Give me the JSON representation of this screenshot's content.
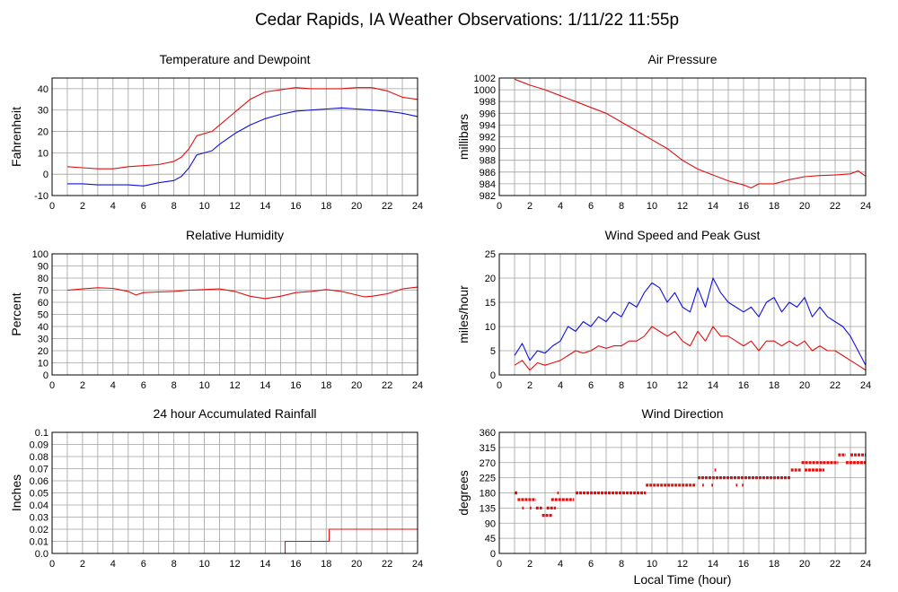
{
  "title": "Cedar Rapids, IA Weather Observations: 1/11/22 11:55p",
  "colors": {
    "red": "#e01010",
    "blue": "#1010e0",
    "grid": "#a0a0a0",
    "frame": "#000000"
  },
  "chart_data": [
    {
      "type": "line",
      "title": "Temperature and Dewpoint",
      "ylabel": "Fahrenheit",
      "xlabel": "",
      "xlim": [
        0,
        24
      ],
      "ylim": [
        -10,
        45
      ],
      "xticks": [
        0,
        2,
        4,
        6,
        8,
        10,
        12,
        14,
        16,
        18,
        20,
        22,
        24
      ],
      "yticks": [
        -10,
        0,
        10,
        20,
        30,
        40
      ],
      "grid": true,
      "series": [
        {
          "color": "#e01010",
          "x": [
            1,
            2,
            3,
            4,
            5,
            6,
            7,
            8,
            8.5,
            9,
            9.5,
            10,
            10.5,
            11,
            12,
            13,
            14,
            15,
            16,
            17,
            18,
            19,
            20,
            21,
            22,
            23,
            24
          ],
          "y": [
            3.5,
            3,
            2.5,
            2.5,
            3.5,
            4,
            4.5,
            6,
            8,
            12,
            18,
            19,
            20,
            23,
            29,
            35,
            38.5,
            39.5,
            40.5,
            40,
            40,
            40,
            40.5,
            40.5,
            39,
            36,
            35
          ]
        },
        {
          "color": "#1010e0",
          "x": [
            1,
            2,
            3,
            4,
            5,
            6,
            7,
            8,
            8.5,
            9,
            9.5,
            10,
            10.5,
            11,
            12,
            13,
            14,
            15,
            16,
            17,
            18,
            19,
            20,
            21,
            22,
            23,
            24
          ],
          "y": [
            -4.5,
            -4.5,
            -5,
            -5,
            -5,
            -5.5,
            -4,
            -3,
            -1,
            3,
            9,
            10,
            11,
            14,
            19,
            23,
            26,
            28,
            29.5,
            30,
            30.5,
            31,
            30.5,
            30,
            29.5,
            28.5,
            27
          ]
        }
      ]
    },
    {
      "type": "line",
      "title": "Air Pressure",
      "ylabel": "millibars",
      "xlabel": "",
      "xlim": [
        0,
        24
      ],
      "ylim": [
        982,
        1002
      ],
      "xticks": [
        0,
        2,
        4,
        6,
        8,
        10,
        12,
        14,
        16,
        18,
        20,
        22,
        24
      ],
      "yticks": [
        982,
        984,
        986,
        988,
        990,
        992,
        994,
        996,
        998,
        1000,
        1002
      ],
      "grid": true,
      "series": [
        {
          "color": "#e01010",
          "x": [
            1,
            2,
            3,
            4,
            5,
            6,
            7,
            8,
            9,
            10,
            11,
            12,
            13,
            14,
            15,
            16,
            16.5,
            17,
            18,
            19,
            20,
            21,
            22,
            23,
            23.5,
            24
          ],
          "y": [
            1001.8,
            1000.8,
            1000,
            999,
            998,
            997,
            996,
            994.5,
            993,
            991.5,
            990,
            988,
            986.5,
            985.5,
            984.5,
            983.8,
            983.3,
            984,
            984,
            984.7,
            985.2,
            985.4,
            985.5,
            985.7,
            986.2,
            985.3
          ]
        }
      ]
    },
    {
      "type": "line",
      "title": "Relative Humidity",
      "ylabel": "Percent",
      "xlabel": "",
      "xlim": [
        0,
        24
      ],
      "ylim": [
        0,
        100
      ],
      "xticks": [
        0,
        2,
        4,
        6,
        8,
        10,
        12,
        14,
        16,
        18,
        20,
        22,
        24
      ],
      "yticks": [
        0,
        10,
        20,
        30,
        40,
        50,
        60,
        70,
        80,
        90,
        100
      ],
      "grid": true,
      "series": [
        {
          "color": "#e01010",
          "x": [
            1,
            2,
            3,
            4,
            5,
            5.5,
            6,
            7,
            8,
            9,
            10,
            11,
            12,
            13,
            14,
            15,
            16,
            17,
            18,
            19,
            20,
            20.5,
            21,
            22,
            23,
            24
          ],
          "y": [
            70,
            71,
            72,
            71.5,
            69,
            66,
            68,
            68.5,
            69,
            70,
            70.5,
            71,
            69,
            65,
            63,
            65,
            68,
            69,
            70.5,
            69,
            66,
            64.5,
            65,
            67,
            71,
            72.5
          ]
        }
      ]
    },
    {
      "type": "line",
      "title": "Wind Speed and Peak Gust",
      "ylabel": "miles/hour",
      "xlabel": "",
      "xlim": [
        0,
        24
      ],
      "ylim": [
        0,
        25
      ],
      "xticks": [
        0,
        2,
        4,
        6,
        8,
        10,
        12,
        14,
        16,
        18,
        20,
        22,
        24
      ],
      "yticks": [
        0,
        5,
        10,
        15,
        20,
        25
      ],
      "grid": true,
      "series": [
        {
          "color": "#1010e0",
          "x": [
            1,
            1.5,
            2,
            2.5,
            3,
            3.5,
            4,
            4.5,
            5,
            5.5,
            6,
            6.5,
            7,
            7.5,
            8,
            8.5,
            9,
            9.5,
            10,
            10.5,
            11,
            11.5,
            12,
            12.5,
            13,
            13.5,
            14,
            14.5,
            15,
            15.5,
            16,
            16.5,
            17,
            17.5,
            18,
            18.5,
            19,
            19.5,
            20,
            20.5,
            21,
            21.5,
            22,
            22.5,
            23,
            23.5,
            24
          ],
          "y": [
            4,
            6.5,
            3,
            5,
            4.5,
            6,
            7,
            10,
            9,
            11,
            10,
            12,
            11,
            13,
            12,
            15,
            14,
            17,
            19,
            18,
            15,
            17,
            14,
            13,
            18,
            14,
            20,
            17,
            15,
            14,
            13,
            14,
            12,
            15,
            16,
            13,
            15,
            14,
            16,
            12,
            14,
            12,
            11,
            10,
            8,
            5,
            2
          ]
        },
        {
          "color": "#e01010",
          "x": [
            1,
            1.5,
            2,
            2.5,
            3,
            3.5,
            4,
            4.5,
            5,
            5.5,
            6,
            6.5,
            7,
            7.5,
            8,
            8.5,
            9,
            9.5,
            10,
            10.5,
            11,
            11.5,
            12,
            12.5,
            13,
            13.5,
            14,
            14.5,
            15,
            15.5,
            16,
            16.5,
            17,
            17.5,
            18,
            18.5,
            19,
            19.5,
            20,
            20.5,
            21,
            21.5,
            22,
            22.5,
            23,
            23.5,
            24
          ],
          "y": [
            2,
            3,
            1,
            2.5,
            2,
            2.5,
            3,
            4,
            5,
            4.5,
            5,
            6,
            5.5,
            6,
            6,
            7,
            7,
            8,
            10,
            9,
            8,
            9,
            7,
            6,
            9,
            7,
            10,
            8,
            8,
            7,
            6,
            7,
            5,
            7,
            7,
            6,
            7,
            6,
            7,
            5,
            6,
            5,
            5,
            4,
            3,
            2,
            1
          ]
        }
      ]
    },
    {
      "type": "line",
      "title": "24 hour Accumulated Rainfall",
      "ylabel": "Inches",
      "xlabel": "",
      "xlim": [
        0,
        24
      ],
      "ylim": [
        0,
        0.1
      ],
      "xticks": [
        0,
        2,
        4,
        6,
        8,
        10,
        12,
        14,
        16,
        18,
        20,
        22,
        24
      ],
      "yticks": [
        "0.0",
        "0.01",
        "0.02",
        "0.03",
        "0.04",
        "0.05",
        "0.06",
        "0.07",
        "0.08",
        "0.09",
        "0.1"
      ],
      "grid": true,
      "series": [
        {
          "color": "#e01010",
          "x": [
            1,
            15.3,
            15.3,
            18.2,
            18.2,
            24
          ],
          "y": [
            0,
            0,
            0.01,
            0.01,
            0.02,
            0.02
          ]
        }
      ]
    },
    {
      "type": "scatter",
      "title": "Wind Direction",
      "ylabel": "degrees",
      "xlabel": "Local Time (hour)",
      "xlim": [
        0,
        24
      ],
      "ylim": [
        0,
        360
      ],
      "xticks": [
        0,
        2,
        4,
        6,
        8,
        10,
        12,
        14,
        16,
        18,
        20,
        22,
        24
      ],
      "yticks": [
        0,
        45,
        90,
        135,
        180,
        225,
        270,
        315,
        360
      ],
      "grid": true,
      "series": [
        {
          "color": "#e01010",
          "segments": [
            [
              1.0,
              1.2,
              180
            ],
            [
              1.2,
              2.4,
              160
            ],
            [
              1.5,
              1.6,
              135
            ],
            [
              2.0,
              2.1,
              135
            ],
            [
              2.4,
              2.8,
              135
            ],
            [
              2.8,
              3.5,
              113
            ],
            [
              3.1,
              3.7,
              135
            ],
            [
              3.4,
              4.9,
              160
            ],
            [
              3.8,
              3.9,
              180
            ],
            [
              5.0,
              9.6,
              180
            ],
            [
              9.6,
              12.9,
              203
            ],
            [
              13.0,
              19.1,
              225
            ],
            [
              14.1,
              14.2,
              248
            ],
            [
              13.3,
              13.4,
              203
            ],
            [
              13.9,
              14.0,
              203
            ],
            [
              15.5,
              15.6,
              203
            ],
            [
              15.9,
              16.0,
              203
            ],
            [
              19.1,
              19.8,
              248
            ],
            [
              19.8,
              21.2,
              270
            ],
            [
              20.0,
              21.3,
              248
            ],
            [
              21.2,
              22.2,
              270
            ],
            [
              22.2,
              22.7,
              293
            ],
            [
              22.7,
              24.0,
              270
            ],
            [
              23.0,
              24.0,
              293
            ]
          ]
        }
      ]
    }
  ]
}
